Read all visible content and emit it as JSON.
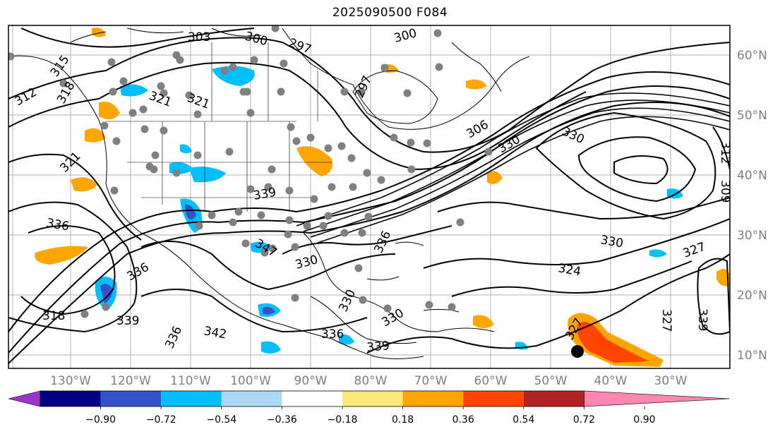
{
  "title": "2025090500 F084",
  "lon_labels": [
    "130°W",
    "120°W",
    "110°W",
    "100°W",
    "90°W",
    "80°W",
    "70°W",
    "60°W",
    "50°W",
    "40°W",
    "30°W"
  ],
  "lat_labels": [
    "60°N",
    "50°N",
    "40°N",
    "30°N",
    "20°N",
    "10°N"
  ],
  "colorbar": {
    "ticks": [
      "−0.90",
      "−0.72",
      "−0.54",
      "−0.36",
      "−0.18",
      "0.18",
      "0.36",
      "0.54",
      "0.72",
      "0.90"
    ],
    "colors": [
      "#9a35cc",
      "#000080",
      "#3352cc",
      "#00bfff",
      "#add8f5",
      "#ffffff",
      "#fde87c",
      "#ffa500",
      "#ff4500",
      "#b22222",
      "#ff85b3"
    ]
  },
  "contour_labels": [
    "303",
    "300",
    "297",
    "300",
    "315",
    "312",
    "318",
    "321",
    "321",
    "297",
    "306",
    "330",
    "330",
    "312",
    "309",
    "321",
    "339",
    "347",
    "336",
    "330",
    "336",
    "330",
    "324",
    "327",
    "336",
    "318",
    "339",
    "336",
    "342",
    "330",
    "336",
    "330",
    "339",
    "339",
    "327",
    "327"
  ]
}
